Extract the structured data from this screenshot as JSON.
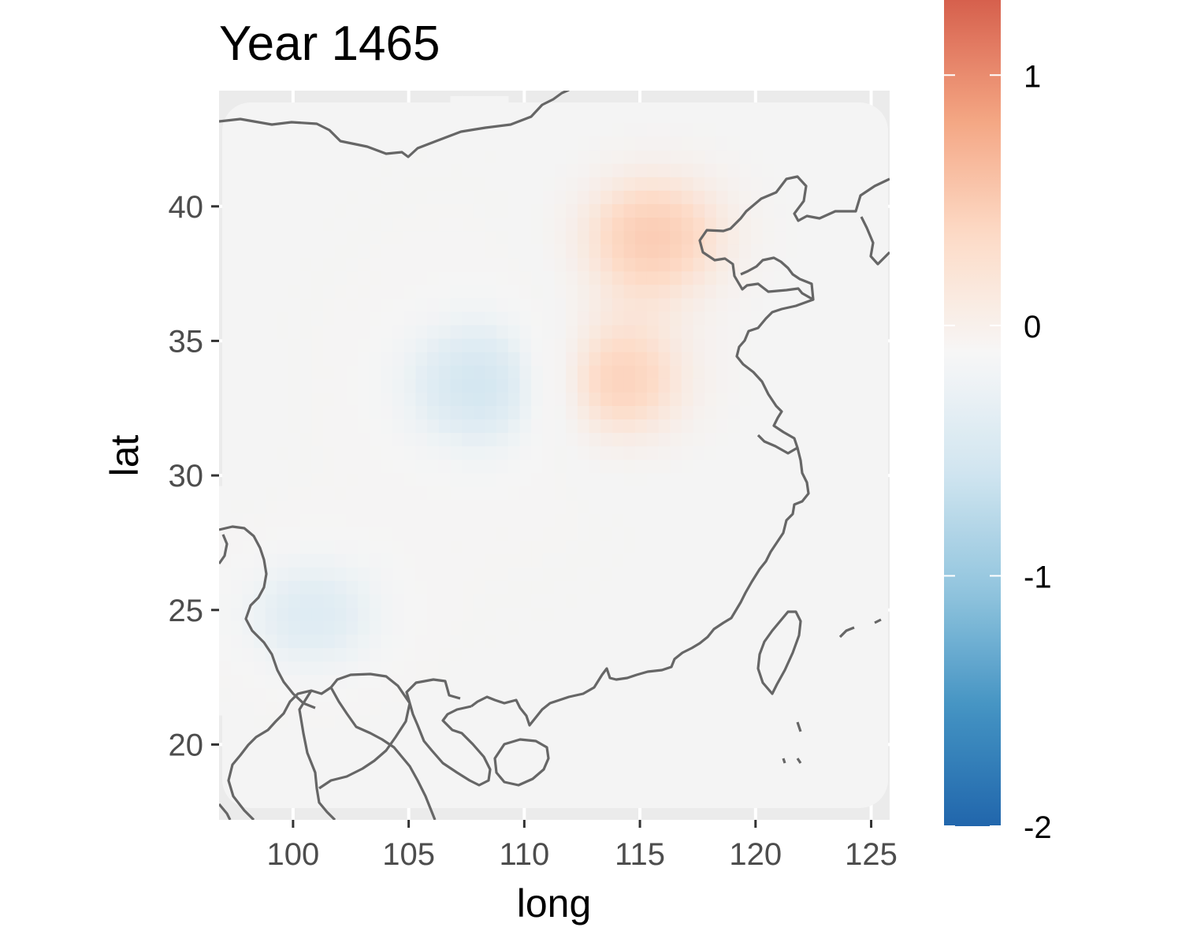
{
  "chart_data": {
    "type": "heatmap",
    "title": "Year 1465",
    "xlabel": "long",
    "ylabel": "lat",
    "xlim": [
      96.8,
      125.8
    ],
    "ylim": [
      17.2,
      44.3
    ],
    "x_ticks": [
      100,
      105,
      110,
      115,
      120,
      125
    ],
    "y_ticks": [
      20,
      25,
      30,
      35,
      40
    ],
    "x_tick_labels": [
      "100",
      "105",
      "110",
      "115",
      "120",
      "125"
    ],
    "y_tick_labels": [
      "20",
      "25",
      "30",
      "35",
      "40"
    ],
    "grid": true,
    "field_extent": {
      "long": [
        96.8,
        125.8
      ],
      "lat": [
        17.6,
        43.8
      ]
    },
    "field_components": [
      {
        "long": 108.3,
        "lat": 33.4,
        "value": -0.5
      },
      {
        "long": 100.8,
        "lat": 24.8,
        "value": -0.4
      },
      {
        "long": 113.8,
        "lat": 33.5,
        "value": 0.5
      },
      {
        "long": 115.5,
        "lat": 38.9,
        "value": 0.5
      }
    ],
    "legend": {
      "position": "right",
      "range": [
        -2,
        1.3
      ],
      "ticks": [
        1,
        0,
        -1,
        -2
      ],
      "tick_labels": [
        "1",
        "0",
        "-1",
        "-2"
      ],
      "palette": [
        "#2166ac",
        "#4393c3",
        "#92c5de",
        "#d1e5f0",
        "#f7f7f7",
        "#fddbc7",
        "#f4a582",
        "#d6604d"
      ]
    },
    "coastline_color": "#666666"
  }
}
